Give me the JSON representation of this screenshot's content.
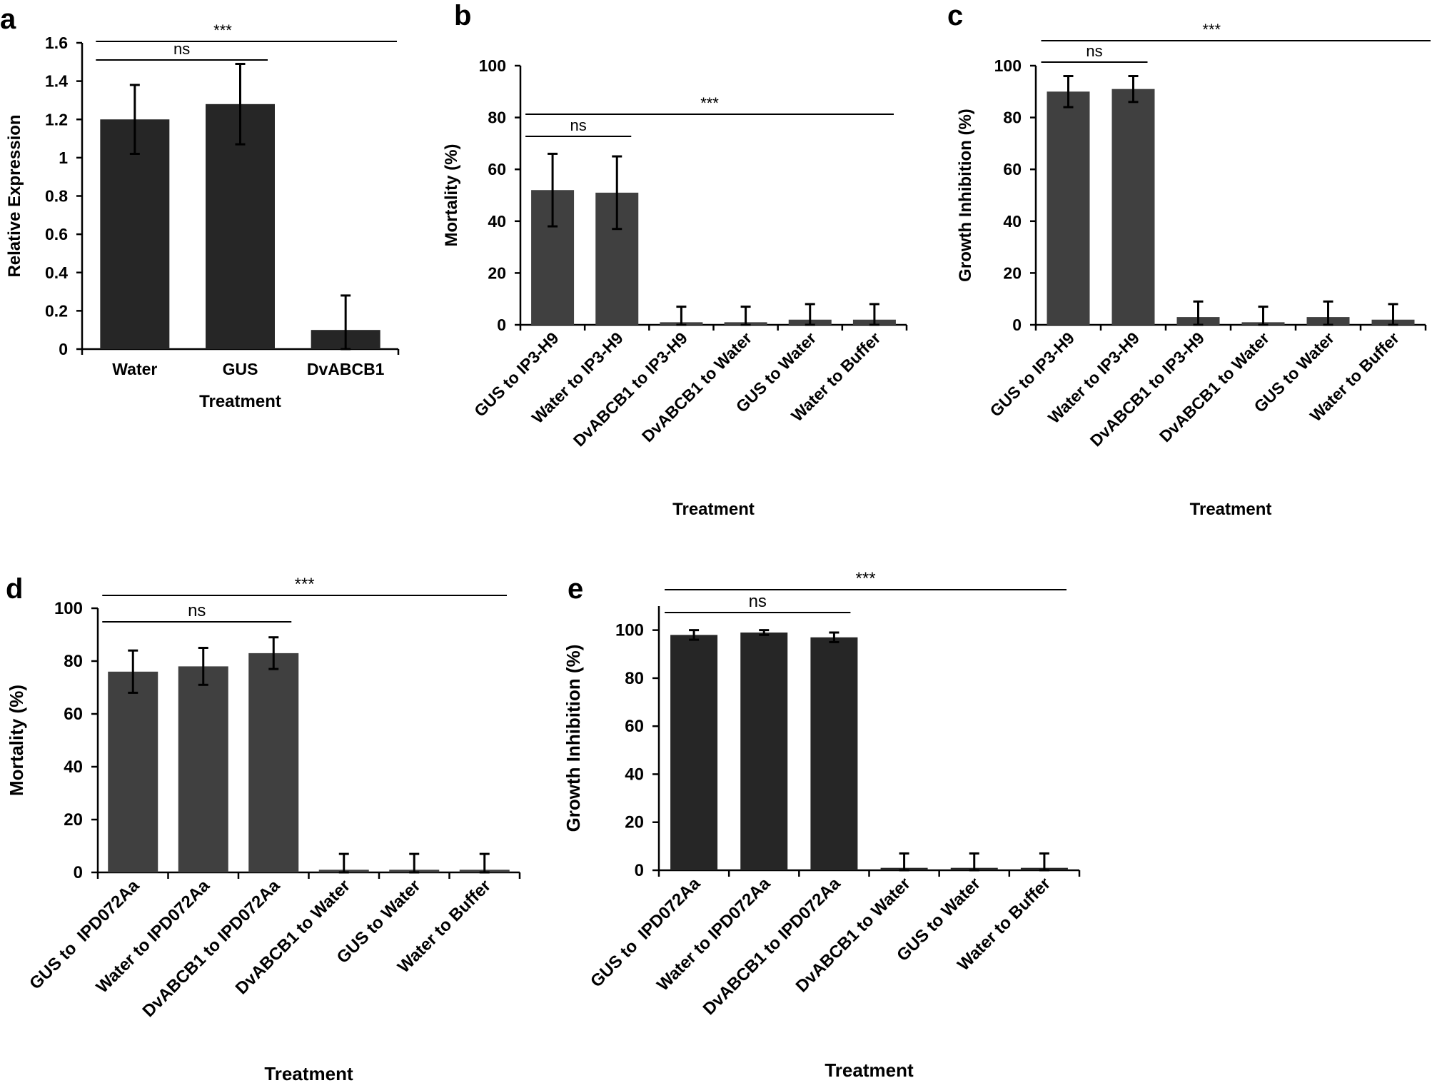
{
  "chart_data": [
    {
      "panel": "a",
      "type": "bar",
      "title": "",
      "xlabel": "Treatment",
      "ylabel": "Relative Expression",
      "categories": [
        "Water",
        "GUS",
        "DvABCB1"
      ],
      "values": [
        1.2,
        1.28,
        0.1
      ],
      "errors": [
        0.18,
        0.21,
        0.18
      ],
      "ylim": [
        0,
        1.6
      ],
      "yticks": [
        "0",
        "0.2",
        "0.4",
        "0.6",
        "0.8",
        "1",
        "1.2",
        "1.4",
        "1.6"
      ],
      "bar_color": "#262626",
      "annotations": [
        {
          "label": "***",
          "from": "Water",
          "to": "DvABCB1"
        },
        {
          "label": "ns",
          "from": "Water",
          "to": "GUS"
        }
      ]
    },
    {
      "panel": "b",
      "type": "bar",
      "title": "",
      "xlabel": "Treatment",
      "ylabel": "Mortality (%)",
      "categories": [
        "GUS to IP3-H9",
        "Water to IP3-H9",
        "DvABCB1 to IP3-H9",
        "DvABCB1 to Water",
        "GUS to Water",
        "Water to Buffer"
      ],
      "values": [
        52,
        51,
        1,
        1,
        2,
        2
      ],
      "errors": [
        14,
        14,
        6,
        6,
        6,
        6
      ],
      "ylim": [
        0,
        100
      ],
      "yticks": [
        "0",
        "20",
        "40",
        "60",
        "80",
        "100"
      ],
      "bar_color": "#404040",
      "annotations": [
        {
          "label": "***",
          "from": "GUS to IP3-H9",
          "to": "Water to Buffer"
        },
        {
          "label": "ns",
          "from": "GUS to IP3-H9",
          "to": "Water to IP3-H9"
        }
      ]
    },
    {
      "panel": "c",
      "type": "bar",
      "title": "",
      "xlabel": "Treatment",
      "ylabel": "Growth Inhibition (%)",
      "categories": [
        "GUS to IP3-H9",
        "Water to IP3-H9",
        "DvABCB1 to IP3-H9",
        "DvABCB1 to Water",
        "GUS to Water",
        "Water to Buffer"
      ],
      "values": [
        90,
        91,
        3,
        1,
        3,
        2
      ],
      "errors": [
        6,
        5,
        6,
        6,
        6,
        6
      ],
      "ylim": [
        0,
        100
      ],
      "yticks": [
        "0",
        "20",
        "40",
        "60",
        "80",
        "100"
      ],
      "bar_color": "#404040",
      "annotations": [
        {
          "label": "***",
          "from": "GUS to IP3-H9",
          "to": "Water to Buffer"
        },
        {
          "label": "ns",
          "from": "GUS to IP3-H9",
          "to": "Water to IP3-H9"
        }
      ]
    },
    {
      "panel": "d",
      "type": "bar",
      "title": "",
      "xlabel": "Treatment",
      "ylabel": "Mortality (%)",
      "categories": [
        "GUS to  IPD072Aa",
        "Water to IPD072Aa",
        "DvABCB1 to IPD072Aa",
        "DvABCB1 to Water",
        "GUS to Water",
        "Water to Buffer"
      ],
      "values": [
        76,
        78,
        83,
        1,
        1,
        1
      ],
      "errors": [
        8,
        7,
        6,
        6,
        6,
        6
      ],
      "ylim": [
        0,
        100
      ],
      "yticks": [
        "0",
        "20",
        "40",
        "60",
        "80",
        "100"
      ],
      "bar_color": "#404040",
      "annotations": [
        {
          "label": "***",
          "from": "GUS to  IPD072Aa",
          "to": "Water to Buffer"
        },
        {
          "label": "ns",
          "from": "GUS to  IPD072Aa",
          "to": "DvABCB1 to IPD072Aa"
        }
      ]
    },
    {
      "panel": "e",
      "type": "bar",
      "title": "",
      "xlabel": "Treatment",
      "ylabel": "Growth Inhibition (%)",
      "categories": [
        "GUS to  IPD072Aa",
        "Water to IPD072Aa",
        "DvABCB1 to IPD072Aa",
        "DvABCB1 to Water",
        "GUS to Water",
        "Water to Buffer"
      ],
      "values": [
        98,
        99,
        97,
        1,
        1,
        1
      ],
      "errors": [
        2,
        1,
        2,
        6,
        6,
        6
      ],
      "ylim": [
        0,
        110
      ],
      "yticks": [
        "0",
        "20",
        "40",
        "60",
        "80",
        "100"
      ],
      "bar_color": "#262626",
      "annotations": [
        {
          "label": "***",
          "from": "GUS to  IPD072Aa",
          "to": "Water to Buffer"
        },
        {
          "label": "ns",
          "from": "GUS to  IPD072Aa",
          "to": "DvABCB1 to IPD072Aa"
        }
      ]
    }
  ]
}
